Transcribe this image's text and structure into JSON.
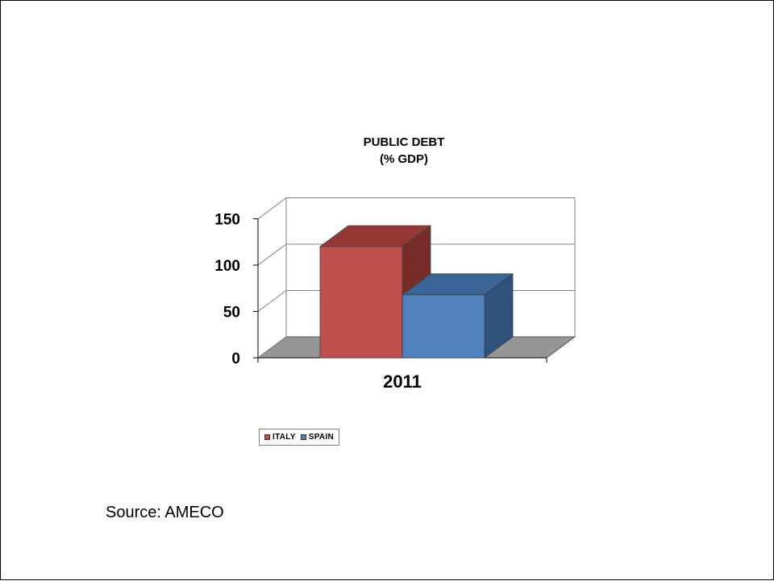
{
  "chart_data": {
    "type": "bar",
    "title": "PUBLIC  DEBT",
    "subtitle": "(% GDP)",
    "categories": [
      "2011"
    ],
    "series": [
      {
        "name": "ITALY",
        "values": [
          120
        ],
        "color": "#c0504d",
        "top_color": "#953735",
        "side_color": "#772c2a"
      },
      {
        "name": "SPAIN",
        "values": [
          68
        ],
        "color": "#4f81bd",
        "top_color": "#3a6496",
        "side_color": "#2f527c"
      }
    ],
    "ylim": [
      0,
      150
    ],
    "yticks": [
      0,
      50,
      100,
      150
    ],
    "ytick_labels": [
      "0",
      "50",
      "100",
      "150"
    ],
    "xlabel": "",
    "ylabel": "",
    "grid": true,
    "legend_position": "bottom",
    "floor_color": "#969696"
  },
  "source_text": "Source: AMECO"
}
